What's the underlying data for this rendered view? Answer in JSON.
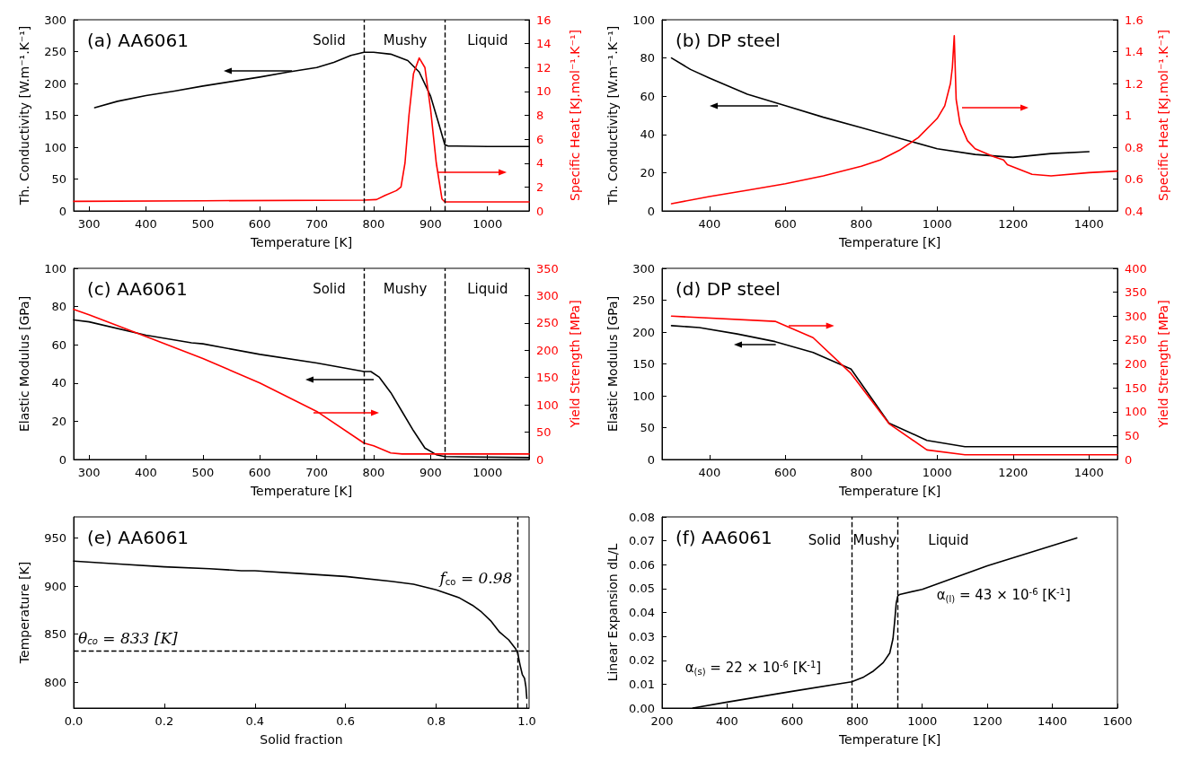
{
  "chart_data": [
    {
      "type": "line",
      "title": "(a) AA6061",
      "xlabel": "Temperature [K]",
      "ylabel": "Th. Conductivity [W.m⁻¹.K⁻¹]",
      "y2label": "Specific Heat [KJ.mol⁻¹.K⁻¹]",
      "xlim": [
        273,
        1073
      ],
      "xticks": [
        300,
        400,
        500,
        600,
        700,
        800,
        900,
        1000
      ],
      "ylim": [
        0,
        300
      ],
      "yticks": [
        0,
        50,
        100,
        150,
        200,
        250,
        300
      ],
      "y2lim": [
        0,
        16
      ],
      "y2ticks": [
        0,
        2,
        4,
        6,
        8,
        10,
        12,
        14,
        16
      ],
      "series": [
        {
          "color": "#000000",
          "x": [
            310,
            350,
            400,
            450,
            500,
            550,
            600,
            650,
            700,
            730,
            760,
            783,
            800,
            830,
            860,
            880,
            900,
            915,
            925,
            930,
            1000,
            1073
          ],
          "values": [
            162,
            172,
            181,
            188,
            196,
            203,
            210,
            218,
            225,
            233,
            244,
            249,
            249,
            246,
            236,
            218,
            180,
            135,
            104,
            102,
            101,
            101
          ]
        },
        {
          "color": "#ff0000",
          "axis": "y2",
          "x": [
            273,
            500,
            783,
            805,
            820,
            840,
            848,
            855,
            862,
            870,
            880,
            890,
            900,
            910,
            920,
            925,
            1073
          ],
          "values": [
            0.8,
            0.85,
            0.9,
            0.95,
            1.3,
            1.7,
            2.0,
            4.0,
            8.0,
            11.5,
            12.8,
            12.0,
            8.5,
            4.0,
            1.0,
            0.75,
            0.75
          ]
        }
      ],
      "ref_lines": [
        {
          "axis": "x",
          "value": 783,
          "line_style": "dashed"
        },
        {
          "axis": "x",
          "value": 925,
          "line_style": "dashed"
        }
      ],
      "annotations": [
        "Solid",
        "Mushy",
        "Liquid"
      ]
    },
    {
      "type": "line",
      "title": "(b) DP steel",
      "xlabel": "Temperature [K]",
      "ylabel": "Th. Conductivity [W.m⁻¹.K⁻¹]",
      "y2label": "Specific Heat [KJ.mol⁻¹.K⁻¹]",
      "xlim": [
        275,
        1475
      ],
      "xticks": [
        400,
        600,
        800,
        1000,
        1200,
        1400
      ],
      "ylim": [
        0,
        100
      ],
      "yticks": [
        0,
        20,
        40,
        60,
        80,
        100
      ],
      "y2lim": [
        0.4,
        1.6
      ],
      "y2ticks": [
        0.4,
        0.6,
        0.8,
        1.0,
        1.2,
        1.4,
        1.6
      ],
      "series": [
        {
          "color": "#000000",
          "x": [
            300,
            350,
            400,
            500,
            600,
            700,
            800,
            900,
            1000,
            1100,
            1200,
            1300,
            1400
          ],
          "values": [
            80,
            74,
            69.5,
            61,
            55,
            49,
            43.5,
            38,
            32.5,
            29.5,
            28,
            30,
            31
          ]
        },
        {
          "color": "#ff0000",
          "axis": "y2",
          "x": [
            300,
            400,
            500,
            600,
            700,
            800,
            850,
            900,
            950,
            1000,
            1020,
            1035,
            1040,
            1045,
            1050,
            1060,
            1080,
            1100,
            1150,
            1175,
            1185,
            1250,
            1300,
            1400,
            1475
          ],
          "values": [
            0.445,
            0.49,
            0.53,
            0.57,
            0.62,
            0.68,
            0.72,
            0.78,
            0.86,
            0.98,
            1.06,
            1.2,
            1.3,
            1.5,
            1.1,
            0.95,
            0.84,
            0.79,
            0.74,
            0.72,
            0.69,
            0.63,
            0.62,
            0.64,
            0.65
          ]
        }
      ]
    },
    {
      "type": "line",
      "title": "(c) AA6061",
      "xlabel": "Temperature [K]",
      "ylabel": "Elastic Modulus [GPa]",
      "y2label": "Yield Strength [MPa]",
      "xlim": [
        273,
        1073
      ],
      "xticks": [
        300,
        400,
        500,
        600,
        700,
        800,
        900,
        1000
      ],
      "ylim": [
        0,
        100
      ],
      "yticks": [
        0,
        20,
        40,
        60,
        80,
        100
      ],
      "y2lim": [
        0,
        350
      ],
      "y2ticks": [
        0,
        50,
        100,
        150,
        200,
        250,
        300,
        350
      ],
      "series": [
        {
          "color": "#000000",
          "x": [
            273,
            300,
            400,
            480,
            500,
            600,
            700,
            783,
            795,
            810,
            830,
            850,
            870,
            890,
            910,
            925,
            1073
          ],
          "values": [
            73,
            72,
            65,
            61,
            60.5,
            55,
            50.5,
            46,
            46,
            43,
            35,
            25,
            15,
            6,
            2.5,
            1.5,
            1
          ]
        },
        {
          "color": "#ff0000",
          "axis": "y2",
          "x": [
            273,
            300,
            400,
            500,
            600,
            700,
            783,
            800,
            830,
            850,
            1073
          ],
          "values": [
            275,
            265,
            225,
            185,
            140,
            88,
            30,
            25,
            12,
            10,
            10
          ]
        }
      ],
      "ref_lines": [
        {
          "axis": "x",
          "value": 783,
          "line_style": "dashed"
        },
        {
          "axis": "x",
          "value": 925,
          "line_style": "dashed"
        }
      ],
      "annotations": [
        "Solid",
        "Mushy",
        "Liquid"
      ]
    },
    {
      "type": "line",
      "title": "(d) DP steel",
      "xlabel": "Temperature [K]",
      "ylabel": "Elastic Modulus [GPa]",
      "y2label": "Yield Strength [MPa]",
      "xlim": [
        275,
        1475
      ],
      "xticks": [
        400,
        600,
        800,
        1000,
        1200,
        1400
      ],
      "ylim": [
        0,
        300
      ],
      "yticks": [
        0,
        50,
        100,
        150,
        200,
        250,
        300
      ],
      "y2lim": [
        0,
        400
      ],
      "y2ticks": [
        0,
        50,
        100,
        150,
        200,
        250,
        300,
        350,
        400
      ],
      "series": [
        {
          "color": "#000000",
          "x": [
            300,
            373,
            473,
            573,
            673,
            773,
            873,
            973,
            1073,
            1475
          ],
          "values": [
            210,
            207,
            197,
            185,
            168,
            142,
            57,
            30,
            20,
            20
          ]
        },
        {
          "color": "#ff0000",
          "axis": "y2",
          "x": [
            300,
            573,
            673,
            773,
            873,
            973,
            1073,
            1475
          ],
          "values": [
            300,
            289,
            255,
            180,
            75,
            20,
            10,
            10
          ]
        }
      ]
    },
    {
      "type": "line",
      "title": "(e) AA6061",
      "xlabel": "Solid fraction",
      "ylabel": "Temperature [K]",
      "xlim": [
        0,
        1.005
      ],
      "xticks": [
        {
          "value": 0,
          "label": "0.0"
        },
        0.2,
        0.4,
        0.6,
        0.8,
        {
          "value": 1,
          "label": "1.0"
        }
      ],
      "ylim": [
        773,
        972
      ],
      "yticks": [
        800,
        850,
        900,
        950
      ],
      "series": [
        {
          "color": "#000000",
          "x": [
            0,
            0.1,
            0.2,
            0.3,
            0.37,
            0.4,
            0.5,
            0.6,
            0.7,
            0.75,
            0.8,
            0.85,
            0.88,
            0.9,
            0.92,
            0.94,
            0.96,
            0.975,
            0.98,
            0.985,
            0.99,
            0.995,
            0.998,
            1.0
          ],
          "values": [
            926,
            923,
            920,
            918,
            916,
            916,
            913,
            910,
            905,
            902,
            896,
            888,
            880,
            873,
            864,
            852,
            844,
            835,
            830,
            818,
            808,
            804,
            795,
            783
          ]
        }
      ],
      "ref_lines": [
        {
          "axis": "y",
          "value": 833,
          "line_style": "dashed",
          "label": "θ$_{co}$ = 833 [K]"
        },
        {
          "axis": "x",
          "value": 0.98,
          "line_style": "dashed",
          "label": "f$_{co}$ = 0.98"
        }
      ]
    },
    {
      "type": "line",
      "title": "(f) AA6061",
      "xlabel": "Temperature [K]",
      "ylabel": "Linear Expansion dL/L",
      "xlim": [
        200,
        1600
      ],
      "xticks": [
        200,
        400,
        600,
        800,
        1000,
        1200,
        1400,
        1600
      ],
      "ylim": [
        0,
        0.08
      ],
      "yticks": [
        {
          "value": 0,
          "label": "0.00"
        },
        0.01,
        0.02,
        0.03,
        0.04,
        0.05,
        0.06,
        0.07,
        0.08
      ],
      "series": [
        {
          "color": "#000000",
          "x": [
            295,
            400,
            600,
            783,
            820,
            850,
            880,
            900,
            910,
            915,
            920,
            925,
            930,
            1000,
            1200,
            1475
          ],
          "values": [
            0,
            0.0025,
            0.007,
            0.011,
            0.013,
            0.0155,
            0.019,
            0.023,
            0.029,
            0.036,
            0.044,
            0.047,
            0.0475,
            0.0497,
            0.0595,
            0.0712
          ]
        }
      ],
      "ref_lines": [
        {
          "axis": "x",
          "value": 783,
          "line_style": "dashed"
        },
        {
          "axis": "x",
          "value": 925,
          "line_style": "dashed"
        }
      ],
      "annotations": [
        "Solid",
        "Mushy",
        "Liquid",
        "α$_{(s)}$ = 22 × 10$^{-6}$ [K$^{-1}$]",
        "α$_{(l)}$ = 43 × 10$^{-6}$ [K$^{-1}$]"
      ]
    }
  ]
}
